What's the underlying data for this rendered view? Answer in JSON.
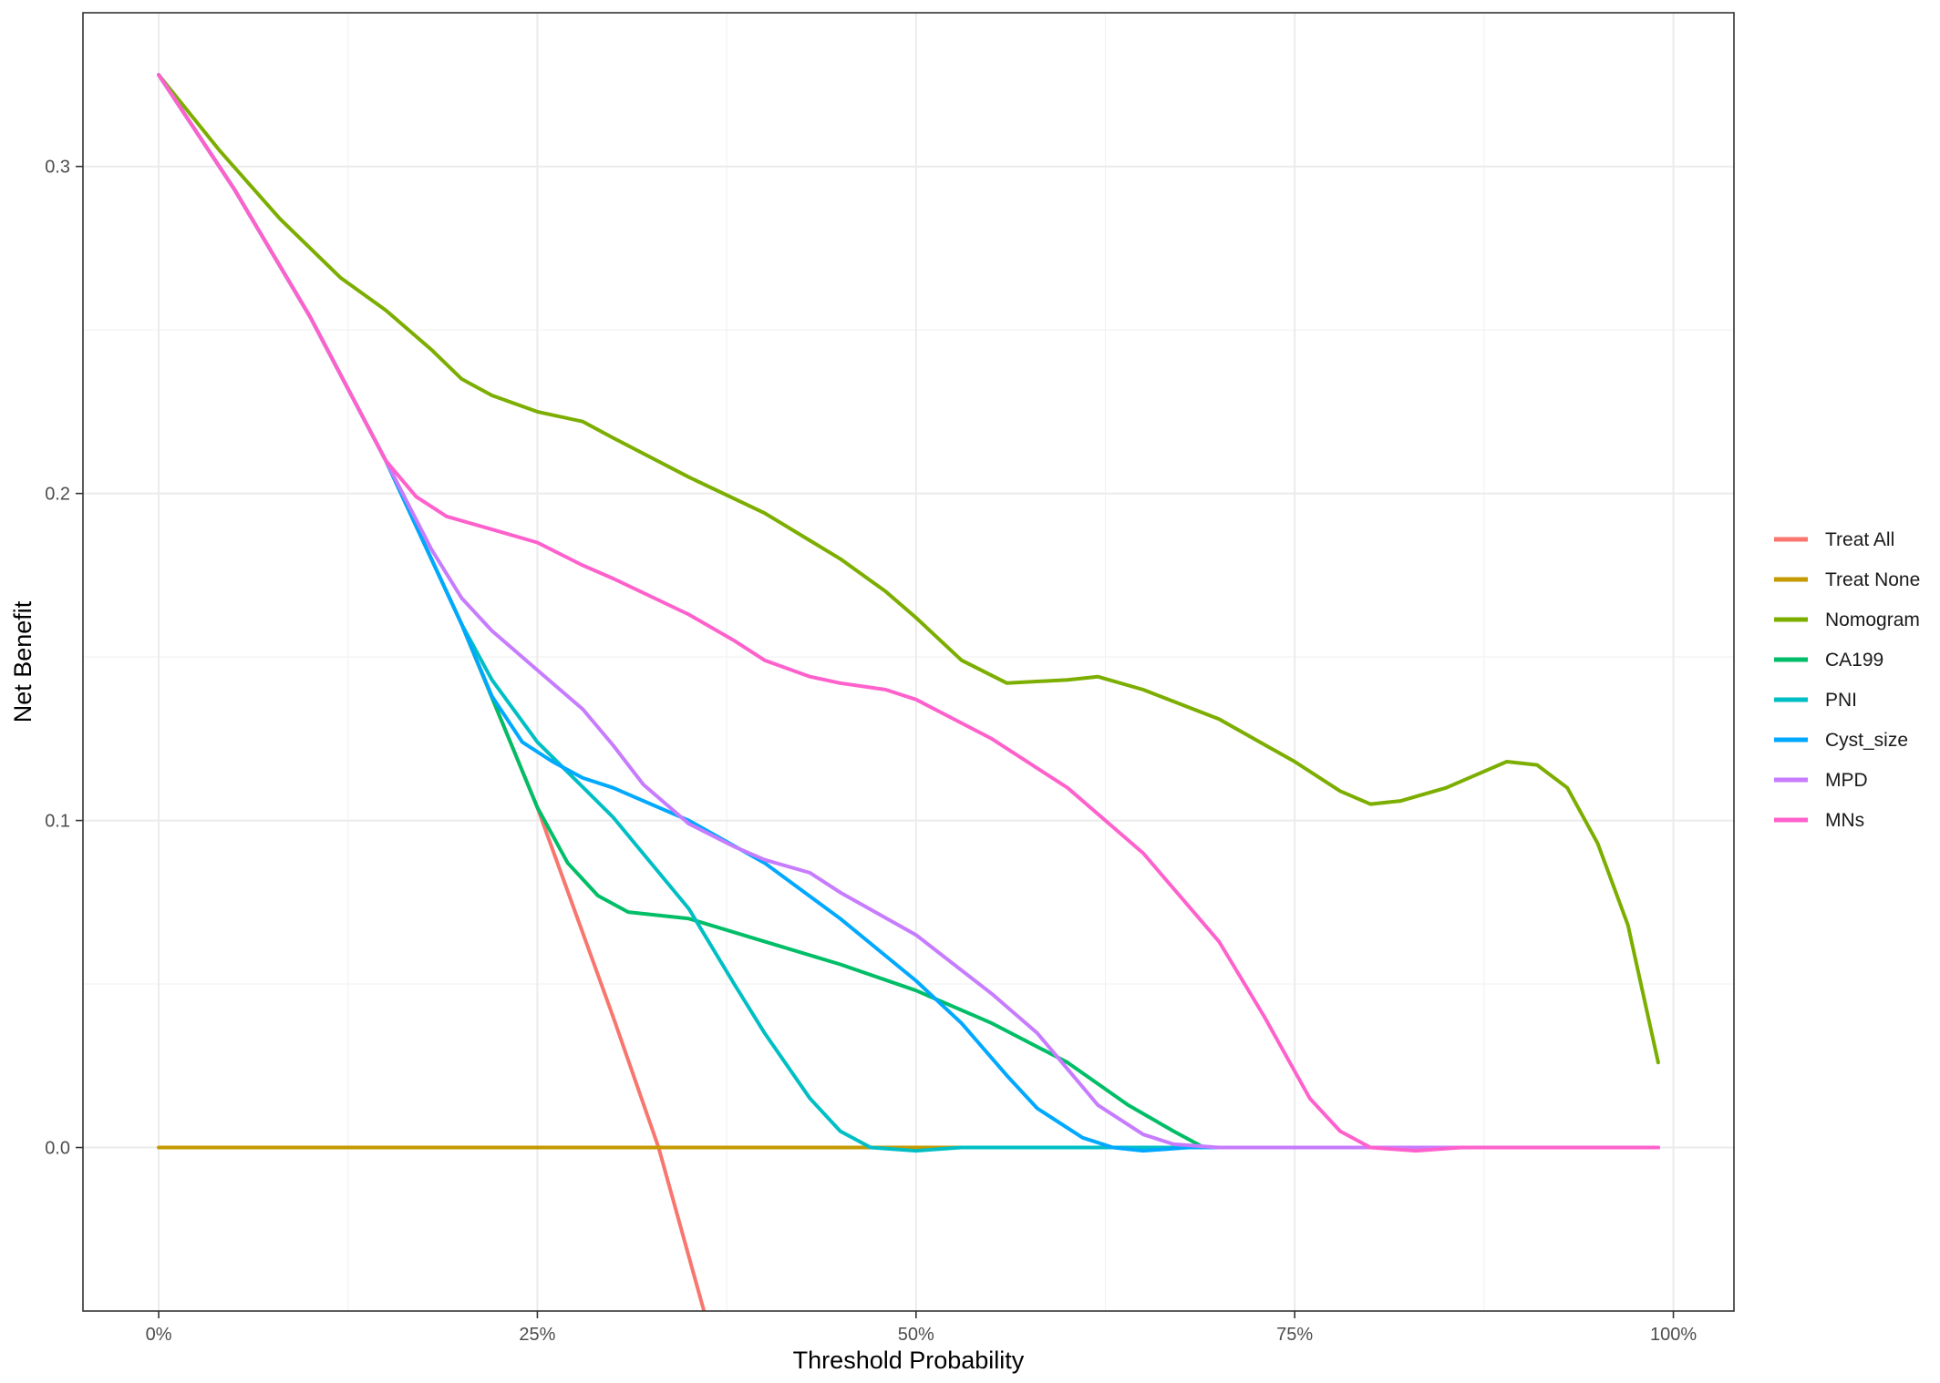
{
  "chart_data": {
    "type": "line",
    "title": "",
    "xlabel": "Threshold Probability",
    "ylabel": "Net Benefit",
    "xlim": [
      -0.05,
      1.04
    ],
    "ylim": [
      -0.05,
      0.347
    ],
    "x_ticks": [
      {
        "value": 0,
        "label": "0%"
      },
      {
        "value": 0.25,
        "label": "25%"
      },
      {
        "value": 0.5,
        "label": "50%"
      },
      {
        "value": 0.75,
        "label": "75%"
      },
      {
        "value": 1,
        "label": "100%"
      }
    ],
    "y_ticks": [
      {
        "value": 0.0,
        "label": "0.0"
      },
      {
        "value": 0.1,
        "label": "0.1"
      },
      {
        "value": 0.2,
        "label": "0.2"
      },
      {
        "value": 0.3,
        "label": "0.3"
      }
    ],
    "grid": true,
    "legend_position": "right",
    "series": [
      {
        "name": "Treat All",
        "color": "#F8766D",
        "points": [
          [
            0,
            0.328
          ],
          [
            0.05,
            0.293
          ],
          [
            0.1,
            0.254
          ],
          [
            0.15,
            0.21
          ],
          [
            0.2,
            0.16
          ],
          [
            0.25,
            0.104
          ],
          [
            0.3,
            0.04
          ],
          [
            0.33,
            0.0
          ],
          [
            0.36,
            -0.05
          ]
        ]
      },
      {
        "name": "Treat None",
        "color": "#C49A00",
        "points": [
          [
            0,
            0
          ],
          [
            0.99,
            0
          ]
        ]
      },
      {
        "name": "Nomogram",
        "color": "#7CAE00",
        "points": [
          [
            0,
            0.328
          ],
          [
            0.04,
            0.305
          ],
          [
            0.08,
            0.284
          ],
          [
            0.12,
            0.266
          ],
          [
            0.15,
            0.256
          ],
          [
            0.18,
            0.244
          ],
          [
            0.2,
            0.235
          ],
          [
            0.22,
            0.23
          ],
          [
            0.25,
            0.225
          ],
          [
            0.28,
            0.222
          ],
          [
            0.3,
            0.217
          ],
          [
            0.35,
            0.205
          ],
          [
            0.4,
            0.194
          ],
          [
            0.45,
            0.18
          ],
          [
            0.48,
            0.17
          ],
          [
            0.5,
            0.162
          ],
          [
            0.53,
            0.149
          ],
          [
            0.56,
            0.142
          ],
          [
            0.6,
            0.143
          ],
          [
            0.62,
            0.144
          ],
          [
            0.65,
            0.14
          ],
          [
            0.7,
            0.131
          ],
          [
            0.75,
            0.118
          ],
          [
            0.78,
            0.109
          ],
          [
            0.8,
            0.105
          ],
          [
            0.82,
            0.106
          ],
          [
            0.85,
            0.11
          ],
          [
            0.87,
            0.114
          ],
          [
            0.89,
            0.118
          ],
          [
            0.91,
            0.117
          ],
          [
            0.93,
            0.11
          ],
          [
            0.95,
            0.093
          ],
          [
            0.97,
            0.068
          ],
          [
            0.99,
            0.026
          ]
        ]
      },
      {
        "name": "CA199",
        "color": "#00BE67",
        "points": [
          [
            0,
            0.328
          ],
          [
            0.05,
            0.293
          ],
          [
            0.1,
            0.254
          ],
          [
            0.15,
            0.21
          ],
          [
            0.2,
            0.16
          ],
          [
            0.25,
            0.104
          ],
          [
            0.27,
            0.087
          ],
          [
            0.29,
            0.077
          ],
          [
            0.31,
            0.072
          ],
          [
            0.35,
            0.07
          ],
          [
            0.4,
            0.063
          ],
          [
            0.45,
            0.056
          ],
          [
            0.5,
            0.048
          ],
          [
            0.55,
            0.038
          ],
          [
            0.6,
            0.026
          ],
          [
            0.64,
            0.013
          ],
          [
            0.67,
            0.005
          ],
          [
            0.69,
            0.0
          ],
          [
            0.99,
            0.0
          ]
        ]
      },
      {
        "name": "PNI",
        "color": "#00BFC4",
        "points": [
          [
            0,
            0.328
          ],
          [
            0.05,
            0.293
          ],
          [
            0.1,
            0.254
          ],
          [
            0.15,
            0.21
          ],
          [
            0.2,
            0.16
          ],
          [
            0.22,
            0.143
          ],
          [
            0.25,
            0.124
          ],
          [
            0.3,
            0.101
          ],
          [
            0.35,
            0.073
          ],
          [
            0.38,
            0.05
          ],
          [
            0.4,
            0.035
          ],
          [
            0.43,
            0.015
          ],
          [
            0.45,
            0.005
          ],
          [
            0.47,
            0.0
          ],
          [
            0.5,
            -0.001
          ],
          [
            0.53,
            0.0
          ],
          [
            0.99,
            0.0
          ]
        ]
      },
      {
        "name": "Cyst_size",
        "color": "#00A9FF",
        "points": [
          [
            0,
            0.328
          ],
          [
            0.05,
            0.293
          ],
          [
            0.1,
            0.254
          ],
          [
            0.15,
            0.21
          ],
          [
            0.2,
            0.16
          ],
          [
            0.22,
            0.138
          ],
          [
            0.24,
            0.124
          ],
          [
            0.26,
            0.118
          ],
          [
            0.28,
            0.113
          ],
          [
            0.3,
            0.11
          ],
          [
            0.35,
            0.1
          ],
          [
            0.4,
            0.087
          ],
          [
            0.45,
            0.07
          ],
          [
            0.5,
            0.051
          ],
          [
            0.53,
            0.038
          ],
          [
            0.56,
            0.022
          ],
          [
            0.58,
            0.012
          ],
          [
            0.61,
            0.003
          ],
          [
            0.63,
            0.0
          ],
          [
            0.65,
            -0.001
          ],
          [
            0.68,
            0.0
          ],
          [
            0.99,
            0.0
          ]
        ]
      },
      {
        "name": "MPD",
        "color": "#C77CFF",
        "points": [
          [
            0,
            0.328
          ],
          [
            0.05,
            0.293
          ],
          [
            0.1,
            0.254
          ],
          [
            0.15,
            0.21
          ],
          [
            0.18,
            0.183
          ],
          [
            0.2,
            0.168
          ],
          [
            0.22,
            0.158
          ],
          [
            0.25,
            0.146
          ],
          [
            0.28,
            0.134
          ],
          [
            0.3,
            0.123
          ],
          [
            0.32,
            0.111
          ],
          [
            0.35,
            0.099
          ],
          [
            0.38,
            0.092
          ],
          [
            0.4,
            0.088
          ],
          [
            0.43,
            0.084
          ],
          [
            0.45,
            0.078
          ],
          [
            0.5,
            0.065
          ],
          [
            0.55,
            0.047
          ],
          [
            0.58,
            0.035
          ],
          [
            0.6,
            0.024
          ],
          [
            0.62,
            0.013
          ],
          [
            0.65,
            0.004
          ],
          [
            0.67,
            0.001
          ],
          [
            0.7,
            0.0
          ],
          [
            0.99,
            0.0
          ]
        ]
      },
      {
        "name": "MNs",
        "color": "#FF61CC",
        "points": [
          [
            0,
            0.328
          ],
          [
            0.05,
            0.293
          ],
          [
            0.1,
            0.254
          ],
          [
            0.15,
            0.21
          ],
          [
            0.17,
            0.199
          ],
          [
            0.19,
            0.193
          ],
          [
            0.22,
            0.189
          ],
          [
            0.25,
            0.185
          ],
          [
            0.28,
            0.178
          ],
          [
            0.3,
            0.174
          ],
          [
            0.35,
            0.163
          ],
          [
            0.38,
            0.155
          ],
          [
            0.4,
            0.149
          ],
          [
            0.43,
            0.144
          ],
          [
            0.45,
            0.142
          ],
          [
            0.48,
            0.14
          ],
          [
            0.5,
            0.137
          ],
          [
            0.55,
            0.125
          ],
          [
            0.6,
            0.11
          ],
          [
            0.65,
            0.09
          ],
          [
            0.7,
            0.063
          ],
          [
            0.73,
            0.04
          ],
          [
            0.76,
            0.015
          ],
          [
            0.78,
            0.005
          ],
          [
            0.8,
            0.0
          ],
          [
            0.83,
            -0.001
          ],
          [
            0.86,
            0.0
          ],
          [
            0.99,
            0.0
          ]
        ]
      }
    ]
  }
}
